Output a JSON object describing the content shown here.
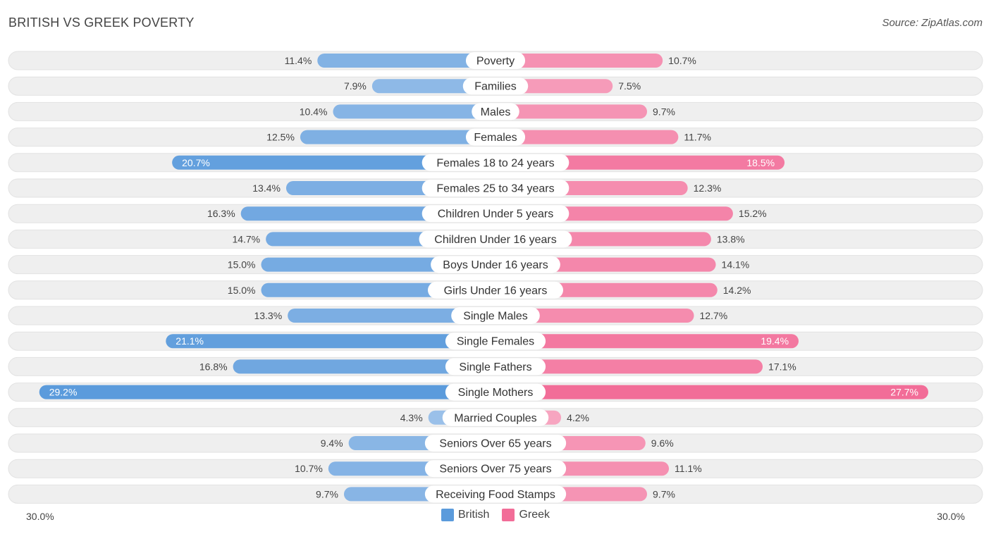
{
  "header": {
    "title": "BRITISH VS GREEK POVERTY",
    "source": "Source: ZipAtlas.com"
  },
  "axis": {
    "left_label": "30.0%",
    "right_label": "30.0%"
  },
  "legend": {
    "british": "British",
    "greek": "Greek"
  },
  "colors": {
    "british": "#5b9bdc",
    "british_light": "#a9c8ec",
    "greek": "#f26d98",
    "greek_light": "#f8b1c9",
    "track": "#efefef"
  },
  "chart_data": {
    "type": "bar",
    "orientation": "horizontal-diverging",
    "title": "BRITISH VS GREEK POVERTY",
    "xlim": [
      -30,
      30
    ],
    "categories": [
      "Poverty",
      "Families",
      "Males",
      "Females",
      "Females 18 to 24 years",
      "Females 25 to 34 years",
      "Children Under 5 years",
      "Children Under 16 years",
      "Boys Under 16 years",
      "Girls Under 16 years",
      "Single Males",
      "Single Females",
      "Single Fathers",
      "Single Mothers",
      "Married Couples",
      "Seniors Over 65 years",
      "Seniors Over 75 years",
      "Receiving Food Stamps"
    ],
    "series": [
      {
        "name": "British",
        "values": [
          11.4,
          7.9,
          10.4,
          12.5,
          20.7,
          13.4,
          16.3,
          14.7,
          15.0,
          15.0,
          13.3,
          21.1,
          16.8,
          29.2,
          4.3,
          9.4,
          10.7,
          9.7
        ],
        "labels": [
          "11.4%",
          "7.9%",
          "10.4%",
          "12.5%",
          "20.7%",
          "13.4%",
          "16.3%",
          "14.7%",
          "15.0%",
          "15.0%",
          "13.3%",
          "21.1%",
          "16.8%",
          "29.2%",
          "4.3%",
          "9.4%",
          "10.7%",
          "9.7%"
        ]
      },
      {
        "name": "Greek",
        "values": [
          10.7,
          7.5,
          9.7,
          11.7,
          18.5,
          12.3,
          15.2,
          13.8,
          14.1,
          14.2,
          12.7,
          19.4,
          17.1,
          27.7,
          4.2,
          9.6,
          11.1,
          9.7
        ],
        "labels": [
          "10.7%",
          "7.5%",
          "9.7%",
          "11.7%",
          "18.5%",
          "12.3%",
          "15.2%",
          "13.8%",
          "14.1%",
          "14.2%",
          "12.7%",
          "19.4%",
          "17.1%",
          "27.7%",
          "4.2%",
          "9.6%",
          "11.1%",
          "9.7%"
        ]
      }
    ]
  }
}
